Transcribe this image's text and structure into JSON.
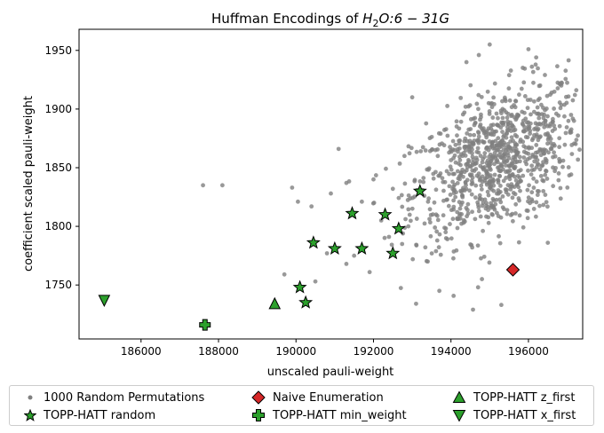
{
  "chart_data": {
    "type": "scatter",
    "title_text": "Huffman Encodings of ",
    "title_math": {
      "sub_before": "H",
      "sub": "2",
      "sub_after": "O",
      "rest": ":6 − 31G"
    },
    "xlabel": "unscaled pauli-weight",
    "ylabel": "coefficient scaled pauli-weight",
    "xlim": [
      184400,
      197400
    ],
    "ylim": [
      1704,
      1968
    ],
    "xticks": [
      186000,
      188000,
      190000,
      192000,
      194000,
      196000
    ],
    "yticks": [
      1750,
      1800,
      1850,
      1900,
      1950
    ],
    "grid": false,
    "legend_position": "bottom",
    "random_cloud": {
      "name": "1000 Random Permutations",
      "color": "#808080",
      "count": 1000,
      "center": [
        195200,
        1856
      ],
      "spread": [
        1100,
        33
      ],
      "correlation": 0.45,
      "outliers": [
        [
          187600,
          1835
        ],
        [
          188100,
          1835
        ],
        [
          189900,
          1833
        ],
        [
          190050,
          1821
        ],
        [
          190400,
          1817
        ],
        [
          190500,
          1753
        ],
        [
          189700,
          1759
        ],
        [
          190800,
          1777
        ],
        [
          190900,
          1828
        ],
        [
          191100,
          1866
        ],
        [
          191300,
          1837
        ],
        [
          191300,
          1768
        ],
        [
          191500,
          1775
        ],
        [
          191700,
          1821
        ],
        [
          191900,
          1761
        ],
        [
          192000,
          1840
        ],
        [
          192200,
          1805
        ],
        [
          192400,
          1791
        ],
        [
          192500,
          1832
        ],
        [
          192900,
          1800
        ],
        [
          193100,
          1734
        ],
        [
          193400,
          1770
        ],
        [
          193700,
          1745
        ],
        [
          192800,
          1860
        ],
        [
          193600,
          1865
        ],
        [
          193000,
          1910
        ],
        [
          194800,
          1755
        ],
        [
          194700,
          1748
        ],
        [
          195300,
          1733
        ],
        [
          196500,
          1786
        ],
        [
          197100,
          1895
        ],
        [
          197200,
          1912
        ],
        [
          195000,
          1955
        ],
        [
          196000,
          1951
        ],
        [
          194400,
          1940
        ],
        [
          196200,
          1944
        ]
      ]
    },
    "series": [
      {
        "name": "TOPP-HATT random",
        "marker": "star",
        "color": "#2ca02c",
        "points": [
          [
            190100,
            1748
          ],
          [
            190250,
            1735
          ],
          [
            190450,
            1786
          ],
          [
            191000,
            1781
          ],
          [
            191450,
            1811
          ],
          [
            191700,
            1781
          ],
          [
            192300,
            1810
          ],
          [
            192500,
            1777
          ],
          [
            192650,
            1798
          ],
          [
            193200,
            1830
          ]
        ]
      },
      {
        "name": "Naive Enumeration",
        "marker": "diamond",
        "color": "#d62728",
        "points": [
          [
            195600,
            1763
          ]
        ]
      },
      {
        "name": "TOPP-HATT z_first",
        "marker": "triangle-up",
        "color": "#2ca02c",
        "points": [
          [
            189450,
            1734
          ]
        ]
      },
      {
        "name": "TOPP-HATT min_weight",
        "marker": "plus",
        "color": "#2ca02c",
        "points": [
          [
            187650,
            1716
          ]
        ]
      },
      {
        "name": "TOPP-HATT x_first",
        "marker": "triangle-down",
        "color": "#2ca02c",
        "points": [
          [
            185050,
            1737
          ]
        ]
      }
    ]
  },
  "legend": {
    "items": [
      {
        "label": "1000 Random Permutations",
        "marker": "dot"
      },
      {
        "label": "TOPP-HATT random",
        "marker": "star"
      },
      {
        "label": "Naive Enumeration",
        "marker": "diamond"
      },
      {
        "label": "TOPP-HATT min_weight",
        "marker": "plus"
      },
      {
        "label": "TOPP-HATT z_first",
        "marker": "triangle-up"
      },
      {
        "label": "TOPP-HATT x_first",
        "marker": "triangle-down"
      }
    ]
  }
}
